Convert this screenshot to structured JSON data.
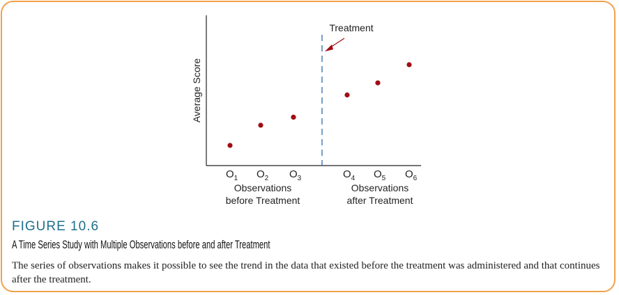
{
  "figure": {
    "label": "FIGURE 10.6",
    "title": "A Time Series Study with Multiple Observations before and after Treatment",
    "caption": "The series of observations makes it possible to see the trend in the data that existed before the treatment was administered and that continues after the treatment."
  },
  "chart_data": {
    "type": "scatter",
    "ylabel": "Average Score",
    "point_color": "#a00d14",
    "accent_color": "#f2a14a",
    "groups": [
      {
        "label_line1": "Observations",
        "label_line2": "before Treatment"
      },
      {
        "label_line1": "Observations",
        "label_line2": "after Treatment"
      }
    ],
    "points": [
      {
        "label": "O",
        "sub": "1",
        "y": 1.0
      },
      {
        "label": "O",
        "sub": "2",
        "y": 2.0
      },
      {
        "label": "O",
        "sub": "3",
        "y": 2.4
      },
      {
        "label": "O",
        "sub": "4",
        "y": 3.5
      },
      {
        "label": "O",
        "sub": "5",
        "y": 4.1
      },
      {
        "label": "O",
        "sub": "6",
        "y": 5.0
      }
    ],
    "annotation": {
      "text": "Treatment",
      "between": [
        3,
        4
      ]
    }
  }
}
